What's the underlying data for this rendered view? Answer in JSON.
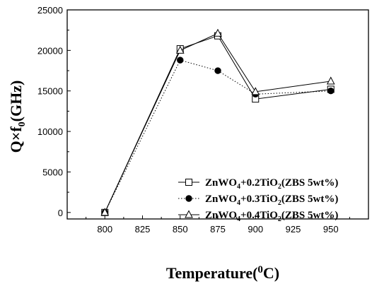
{
  "chart_data": {
    "type": "line",
    "title": "",
    "xlabel": {
      "main": "Temperature(",
      "sup": "0",
      "tail": "C)"
    },
    "ylabel": {
      "main": "Q×f",
      "sub": "0",
      "tail": "(GHz)"
    },
    "xlim": [
      775,
      975
    ],
    "ylim": [
      -800,
      25000
    ],
    "xticks": [
      800,
      825,
      850,
      875,
      900,
      925,
      950
    ],
    "yticks": [
      0,
      5000,
      10000,
      15000,
      20000,
      25000
    ],
    "grid": false,
    "legend_position": "bottom-right",
    "series": [
      {
        "name": "ZnWO4+0.2TiO2(ZBS 5wt%)",
        "label_parts": [
          "ZnWO",
          "4",
          "+0.2TiO",
          "2",
          "(ZBS 5wt%)"
        ],
        "marker": "open-square",
        "line": "solid",
        "color": "#000000",
        "x": [
          800,
          850,
          875,
          900,
          950
        ],
        "y": [
          0,
          20200,
          21800,
          14000,
          15200
        ]
      },
      {
        "name": "ZnWO4+0.3TiO2(ZBS 5wt%)",
        "label_parts": [
          "ZnWO",
          "4",
          "+0.3TiO",
          "2",
          "(ZBS 5wt%)"
        ],
        "marker": "filled-circle",
        "line": "dotted",
        "color": "#000000",
        "x": [
          800,
          850,
          875,
          900,
          950
        ],
        "y": [
          0,
          18800,
          17500,
          14600,
          15000
        ]
      },
      {
        "name": "ZnWO4+0.4TiO2(ZBS 5wt%)",
        "label_parts": [
          "ZnWO",
          "4",
          "+0.4TiO",
          "2",
          "(ZBS 5wt%)"
        ],
        "marker": "open-triangle",
        "line": "solid",
        "color": "#000000",
        "x": [
          800,
          850,
          875,
          900,
          950
        ],
        "y": [
          0,
          20000,
          22100,
          14900,
          16200
        ]
      }
    ]
  }
}
